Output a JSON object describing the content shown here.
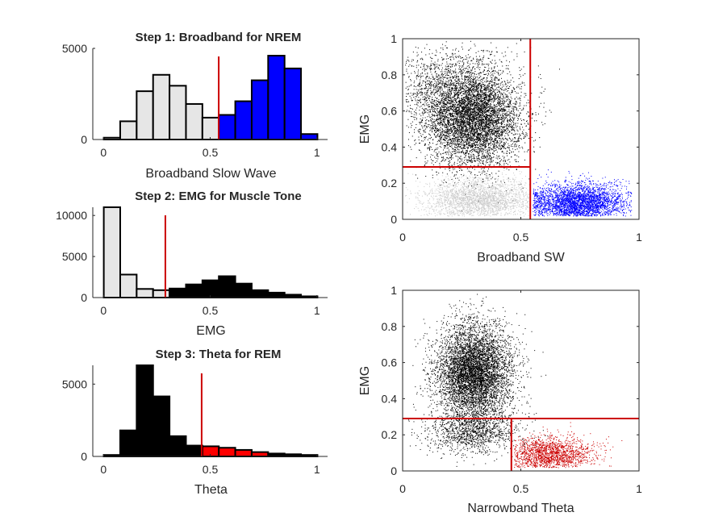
{
  "colors": {
    "light_gray": "#e6e6e6",
    "black": "#000000",
    "blue": "#0000ff",
    "red": "#ff0000",
    "threshold": "#cc0000",
    "scatter_gray": "#cccccc"
  },
  "chart_data": [
    {
      "type": "bar",
      "title": "Step 1: Broadband for NREM",
      "xlabel": "Broadband Slow Wave",
      "ylabel": "",
      "xlim": [
        -0.05,
        1.05
      ],
      "ylim": [
        0,
        5000
      ],
      "xticks": [
        "0",
        "0.5",
        "1"
      ],
      "yticks": [
        "0",
        "5000"
      ],
      "bin_width": 0.077,
      "bin_centers": [
        0.04,
        0.117,
        0.194,
        0.271,
        0.348,
        0.425,
        0.502,
        0.579,
        0.656,
        0.733,
        0.81,
        0.887,
        0.964
      ],
      "values": [
        100,
        1000,
        2650,
        3550,
        2950,
        1950,
        1200,
        1350,
        2100,
        3250,
        4600,
        3900,
        300
      ],
      "bar_colors": [
        "light_gray",
        "light_gray",
        "light_gray",
        "light_gray",
        "light_gray",
        "light_gray",
        "light_gray",
        "blue",
        "blue",
        "blue",
        "blue",
        "blue",
        "blue"
      ],
      "threshold": 0.54
    },
    {
      "type": "bar",
      "title": "Step 2: EMG for Muscle Tone",
      "xlabel": "EMG",
      "ylabel": "",
      "xlim": [
        -0.05,
        1.05
      ],
      "ylim": [
        0,
        11000
      ],
      "xticks": [
        "0",
        "0.5",
        "1"
      ],
      "yticks": [
        "0",
        "5000",
        "10000"
      ],
      "bin_width": 0.077,
      "bin_centers": [
        0.04,
        0.117,
        0.194,
        0.271,
        0.348,
        0.425,
        0.502,
        0.579,
        0.656,
        0.733,
        0.81,
        0.887,
        0.964
      ],
      "values": [
        11100,
        2800,
        1050,
        900,
        1100,
        1600,
        2100,
        2600,
        1700,
        900,
        600,
        350,
        150
      ],
      "bar_colors": [
        "light_gray",
        "light_gray",
        "light_gray",
        "light_gray",
        "black",
        "black",
        "black",
        "black",
        "black",
        "black",
        "black",
        "black",
        "black"
      ],
      "threshold": 0.29
    },
    {
      "type": "bar",
      "title": "Step 3: Theta for REM",
      "xlabel": "Theta",
      "ylabel": "",
      "xlim": [
        -0.05,
        1.05
      ],
      "ylim": [
        0,
        6300
      ],
      "xticks": [
        "0",
        "0.5",
        "1"
      ],
      "yticks": [
        "0",
        "5000"
      ],
      "bin_width": 0.077,
      "bin_centers": [
        0.04,
        0.117,
        0.194,
        0.271,
        0.348,
        0.425,
        0.502,
        0.579,
        0.656,
        0.733,
        0.81,
        0.887,
        0.964
      ],
      "values": [
        100,
        1800,
        6300,
        4150,
        1400,
        750,
        700,
        600,
        450,
        300,
        200,
        150,
        100
      ],
      "bar_colors": [
        "black",
        "black",
        "black",
        "black",
        "black",
        "black",
        "red",
        "red",
        "red",
        "red",
        "black",
        "black",
        "black"
      ],
      "threshold": 0.46
    },
    {
      "type": "scatter",
      "title": "",
      "xlabel": "Broadband SW",
      "ylabel": "EMG",
      "xlim": [
        0,
        1
      ],
      "ylim": [
        0,
        1
      ],
      "xticks": [
        "0",
        "0.5",
        "1"
      ],
      "yticks": [
        "0",
        "0.2",
        "0.4",
        "0.6",
        "0.8",
        "1"
      ],
      "series": [
        {
          "color": "black",
          "center": [
            0.3,
            0.55
          ],
          "spread": [
            0.1,
            0.13
          ],
          "count": 5500
        },
        {
          "color": "black",
          "center": [
            0.2,
            0.72
          ],
          "spread": [
            0.12,
            0.12
          ],
          "count": 1500
        },
        {
          "color": "scatter_gray",
          "center": [
            0.33,
            0.11
          ],
          "spread": [
            0.12,
            0.06
          ],
          "count": 2600
        },
        {
          "color": "blue",
          "center": [
            0.74,
            0.09
          ],
          "spread": [
            0.1,
            0.055
          ],
          "count": 3500
        }
      ],
      "thresholds": {
        "vertical_x": 0.54,
        "horizontal_y": 0.29,
        "horizontal_x_range": [
          0,
          0.54
        ]
      }
    },
    {
      "type": "scatter",
      "title": "",
      "xlabel": "Narrowband Theta",
      "ylabel": "EMG",
      "xlim": [
        0,
        1
      ],
      "ylim": [
        0,
        1
      ],
      "xticks": [
        "0",
        "0.5",
        "1"
      ],
      "yticks": [
        "0",
        "0.2",
        "0.4",
        "0.6",
        "0.8",
        "1"
      ],
      "series": [
        {
          "color": "black",
          "center": [
            0.3,
            0.55
          ],
          "spread": [
            0.08,
            0.13
          ],
          "count": 6000
        },
        {
          "color": "black",
          "center": [
            0.3,
            0.22
          ],
          "spread": [
            0.1,
            0.06
          ],
          "count": 1200
        },
        {
          "color": "threshold",
          "center": [
            0.62,
            0.09
          ],
          "spread": [
            0.09,
            0.05
          ],
          "count": 1800
        }
      ],
      "thresholds": {
        "vertical_x": 0.46,
        "vertical_y_range": [
          0,
          0.29
        ],
        "horizontal_y": 0.29,
        "horizontal_x_range": [
          0,
          1
        ]
      }
    }
  ]
}
